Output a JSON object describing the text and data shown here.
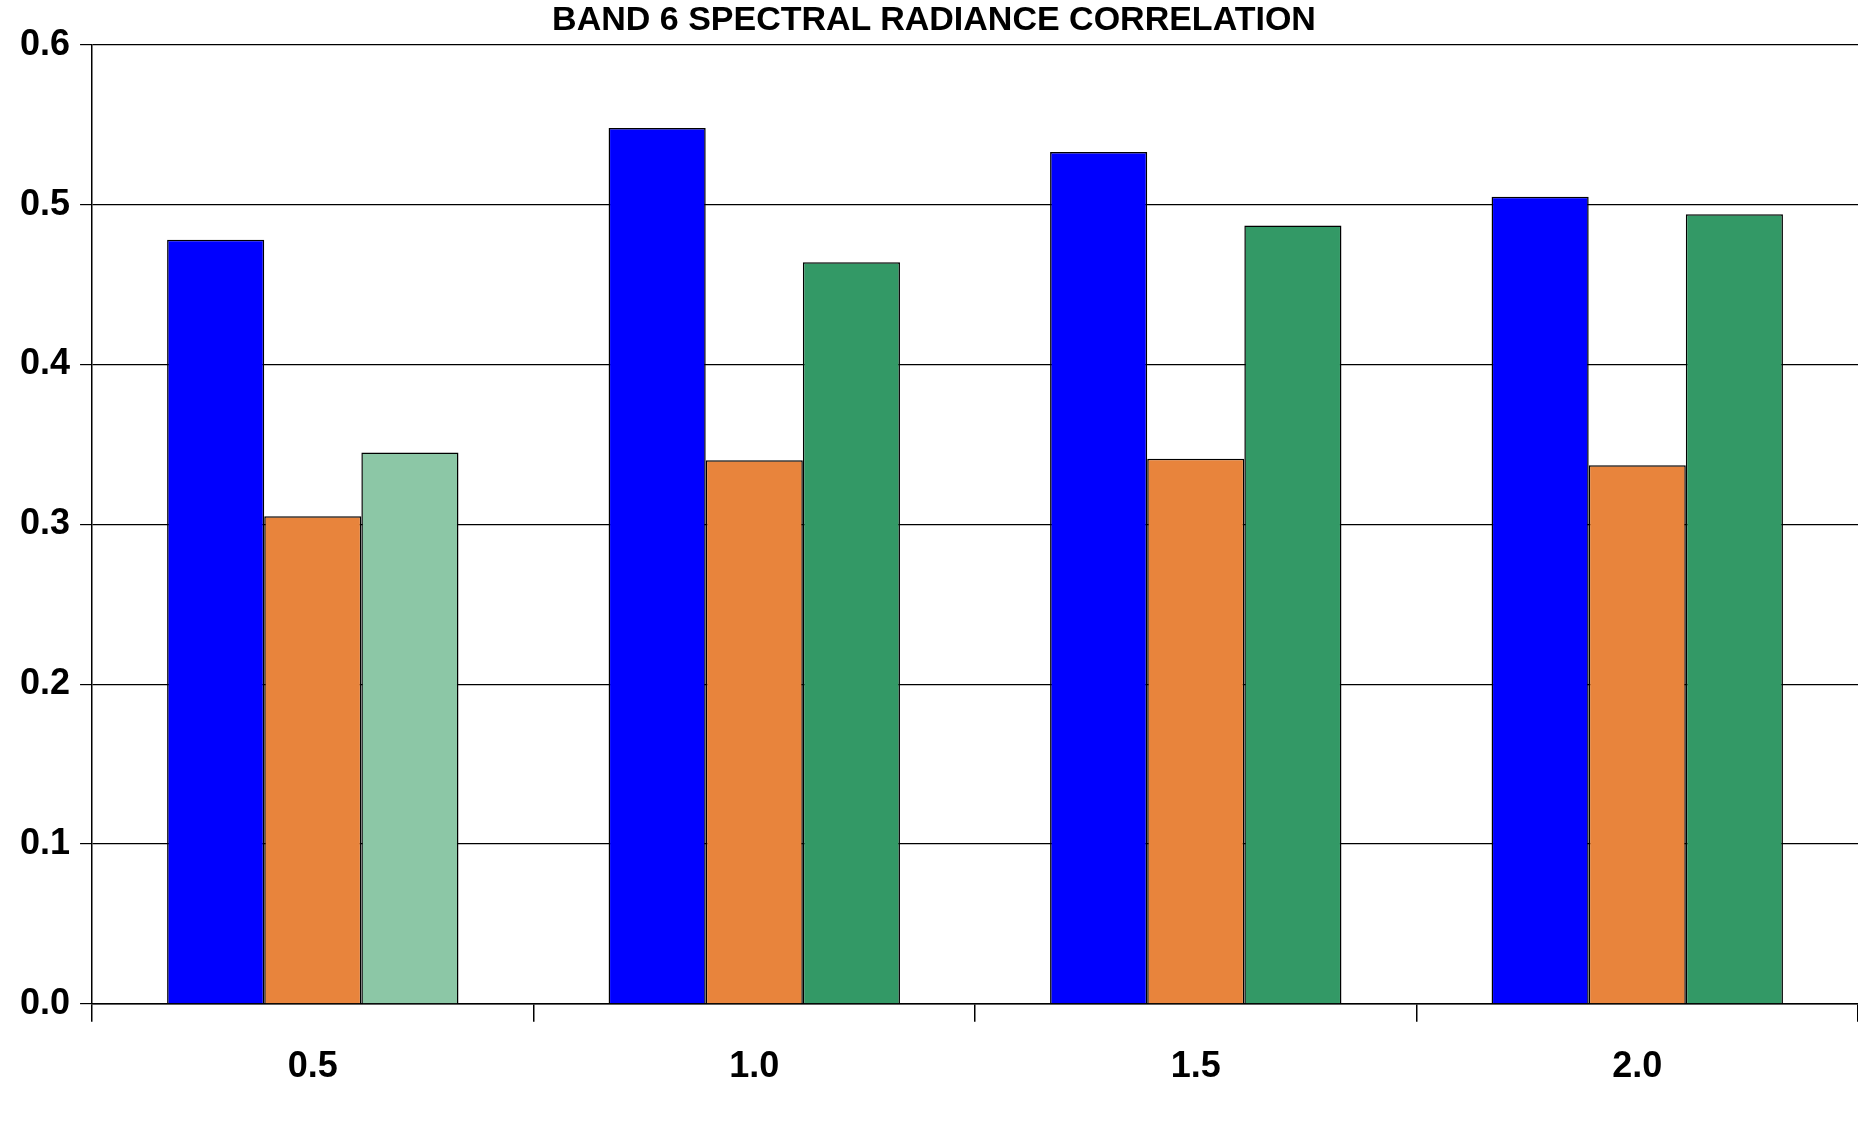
{
  "chart_data": {
    "type": "bar",
    "title": "BAND 6 SPECTRAL RADIANCE CORRELATION",
    "categories": [
      "0.5",
      "1.0",
      "1.5",
      "2.0"
    ],
    "series": [
      {
        "color": "#0000ff",
        "values": [
          0.478,
          0.548,
          0.533,
          0.505
        ]
      },
      {
        "color": "#e8843c",
        "values": [
          0.305,
          0.34,
          0.341,
          0.337
        ]
      },
      {
        "colors": [
          "#8cc7a6",
          "#339966",
          "#339966",
          "#339966"
        ],
        "values": [
          0.345,
          0.464,
          0.487,
          0.494
        ]
      }
    ],
    "ylim": [
      0,
      0.6
    ],
    "yticks": [
      {
        "value": 0,
        "label": "0.0"
      },
      0.1,
      0.2,
      0.3,
      0.4,
      0.5,
      0.6
    ],
    "grid": "y",
    "legend": false
  }
}
